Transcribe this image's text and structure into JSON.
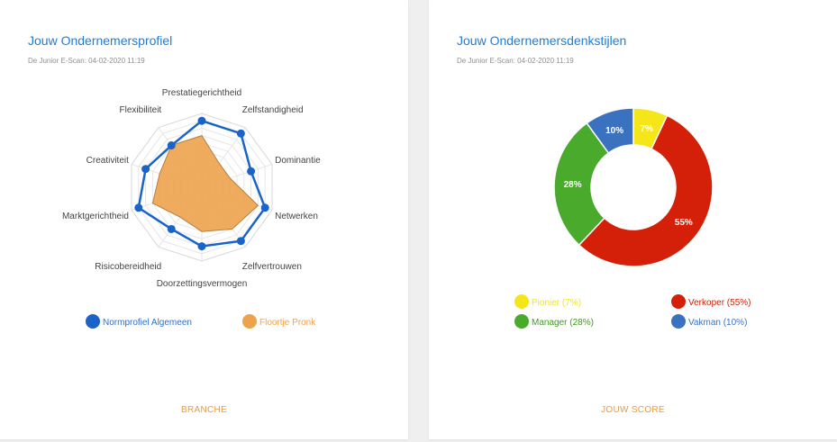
{
  "cards": [
    {
      "title": "Jouw Ondernemersprofiel",
      "subtitle": "De Junior E-Scan: 04-02-2020 11:19",
      "footer": "BRANCHE"
    },
    {
      "title": "Jouw Ondernemersdenkstijlen",
      "subtitle": "De Junior E-Scan: 04-02-2020 11:19",
      "footer": "JOUW SCORE"
    }
  ],
  "chart_data": [
    {
      "type": "radar",
      "categories": [
        "Prestatiegerichtheid",
        "Zelfstandigheid",
        "Dominantie",
        "Netwerken",
        "Zelfvertrouwen",
        "Doorzettingsvermogen",
        "Risicobereidheid",
        "Marktgerichtheid",
        "Creativiteit",
        "Flexibiliteit"
      ],
      "rlim": [
        0,
        10
      ],
      "grid": true,
      "legend_position": "bottom",
      "series": [
        {
          "name": "Normprofiel Algemeen",
          "color": "#1a63c9",
          "values": [
            9,
            9,
            7,
            9,
            9,
            8,
            7,
            9,
            8,
            7
          ]
        },
        {
          "name": "Floortje Pronk",
          "color": "#eda24c",
          "values": [
            7,
            4,
            4,
            8,
            7,
            6,
            5,
            7,
            6,
            7
          ]
        }
      ]
    },
    {
      "type": "pie",
      "donut": true,
      "legend_position": "bottom",
      "slices": [
        {
          "label": "Pionier",
          "value": 7,
          "text": "7%",
          "legend": "Pionier (7%)",
          "color": "#f4e618",
          "label_color": "#f4e618"
        },
        {
          "label": "Verkoper",
          "value": 55,
          "text": "55%",
          "legend": "Verkoper (55%)",
          "color": "#d42008",
          "label_color": "#cc2200"
        },
        {
          "label": "Manager",
          "value": 28,
          "text": "28%",
          "legend": "Manager (28%)",
          "color": "#4aaa2c",
          "label_color": "#3f9a25"
        },
        {
          "label": "Vakman",
          "value": 10,
          "text": "10%",
          "legend": "Vakman (10%)",
          "color": "#3a72c0",
          "label_color": "#3a72c0"
        }
      ]
    }
  ]
}
